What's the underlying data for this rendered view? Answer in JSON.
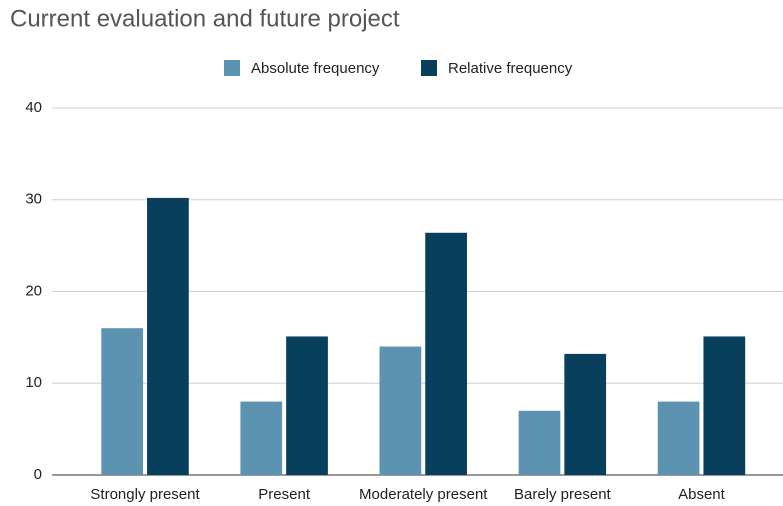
{
  "chart_data": {
    "type": "bar",
    "title": "Current evaluation and future project",
    "categories": [
      "Strongly present",
      "Present",
      "Moderately present",
      "Barely present",
      "Absent"
    ],
    "series": [
      {
        "name": "Absolute frequency",
        "color": "#5b93b0",
        "values": [
          16,
          8,
          14,
          7,
          8
        ]
      },
      {
        "name": "Relative frequency",
        "color": "#083f5c",
        "values": [
          30.2,
          15.1,
          26.4,
          13.2,
          15.1
        ]
      }
    ],
    "ylim": [
      0,
      40
    ],
    "yticks": [
      0,
      10,
      20,
      30,
      40
    ],
    "grid": true,
    "legend": "top"
  }
}
